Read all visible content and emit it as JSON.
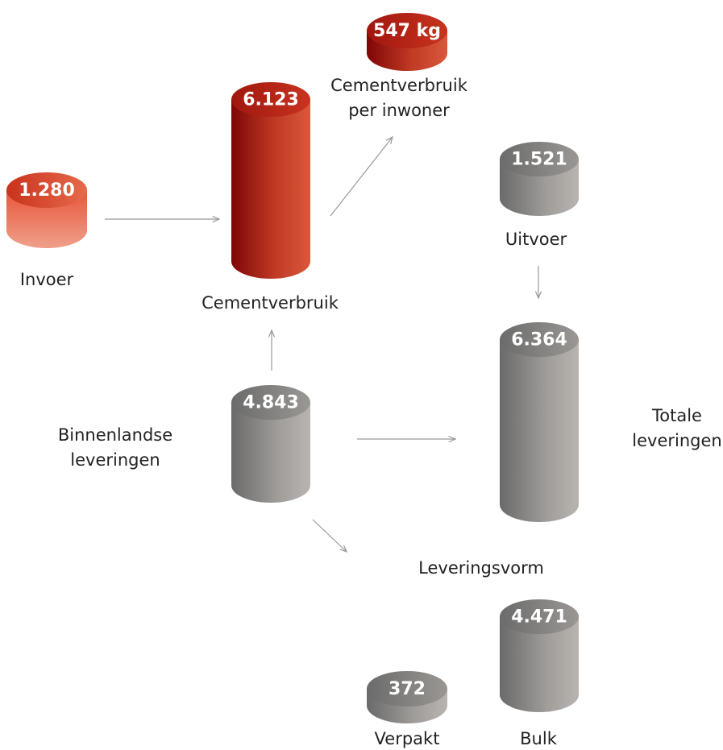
{
  "nodes": [
    {
      "value": "547 kg",
      "label": [
        "Cementverbruik",
        "per inwoner"
      ]
    },
    {
      "value": "6.123",
      "label": [
        "Cementverbruik"
      ]
    },
    {
      "value": "1.280",
      "label": [
        "Invoer"
      ]
    },
    {
      "value": "1.521",
      "label": [
        "Uitvoer"
      ]
    },
    {
      "value": "6.364",
      "label": [
        "Totale",
        "leveringen"
      ]
    },
    {
      "value": "4.843",
      "label": [
        "Binnenlandse",
        "leveringen"
      ]
    },
    {
      "value": "4.471",
      "label": [
        "Bulk"
      ]
    },
    {
      "value": "372",
      "label": [
        "Verpakt"
      ]
    }
  ],
  "heading": "Leveringsvorm"
}
